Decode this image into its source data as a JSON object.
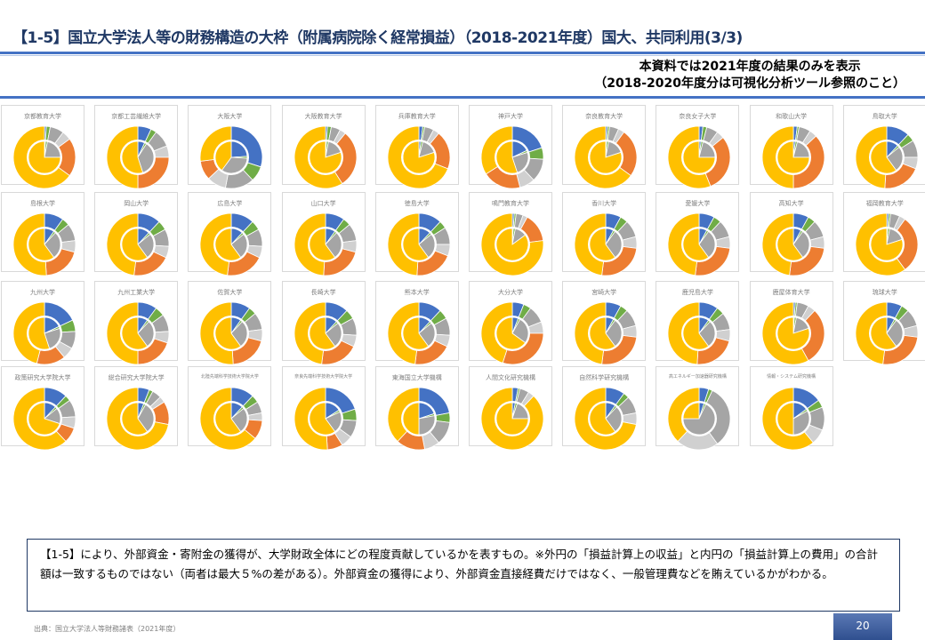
{
  "header": {
    "title": "【1-5】国立大学法人等の財務構造の大枠（附属病院除く経常損益）（2018-2021年度）国大、共同利用(3/3)",
    "note_line1": "本資料では2021年度の結果のみを表示",
    "note_line2": "（2018-2020年度分は可視化分析ツール参照のこと）"
  },
  "colors": {
    "blue": "#4472c4",
    "green": "#70ad47",
    "gray": "#a5a5a5",
    "lightgray": "#d0d0d0",
    "orange": "#ed7d31",
    "yellow": "#ffc000"
  },
  "charts": [
    {
      "name": "京都教育大学",
      "outer": [
        0.01,
        0.02,
        0.12,
        0.2
      ],
      "inner": 0.25
    },
    {
      "name": "京都工芸繊維大学",
      "outer": [
        0.07,
        0.03,
        0.15,
        0.25
      ],
      "inner": 0.45
    },
    {
      "name": "大阪大学",
      "outer": [
        0.3,
        0.08,
        0.25,
        0.1
      ],
      "inner": 0.6
    },
    {
      "name": "大阪教育大学",
      "outer": [
        0.01,
        0.02,
        0.08,
        0.3
      ],
      "inner": 0.2
    },
    {
      "name": "兵庫教育大学",
      "outer": [
        0.02,
        0.01,
        0.08,
        0.2
      ],
      "inner": 0.2
    },
    {
      "name": "神戸大学",
      "outer": [
        0.2,
        0.06,
        0.2,
        0.2
      ],
      "inner": 0.45
    },
    {
      "name": "奈良教育大学",
      "outer": [
        0.01,
        0.01,
        0.08,
        0.25
      ],
      "inner": 0.2
    },
    {
      "name": "奈良女子大学",
      "outer": [
        0.02,
        0.02,
        0.1,
        0.3
      ],
      "inner": 0.25
    },
    {
      "name": "和歌山大学",
      "outer": [
        0.02,
        0.01,
        0.1,
        0.37
      ],
      "inner": 0.25
    },
    {
      "name": "鳥取大学",
      "outer": [
        0.12,
        0.04,
        0.15,
        0.2
      ],
      "inner": 0.4
    },
    {
      "name": "島根大学",
      "outer": [
        0.1,
        0.04,
        0.15,
        0.2
      ],
      "inner": 0.4
    },
    {
      "name": "岡山大学",
      "outer": [
        0.12,
        0.05,
        0.15,
        0.2
      ],
      "inner": 0.4
    },
    {
      "name": "広島大学",
      "outer": [
        0.12,
        0.05,
        0.15,
        0.2
      ],
      "inner": 0.4
    },
    {
      "name": "山口大学",
      "outer": [
        0.1,
        0.04,
        0.15,
        0.22
      ],
      "inner": 0.4
    },
    {
      "name": "徳島大学",
      "outer": [
        0.12,
        0.04,
        0.15,
        0.2
      ],
      "inner": 0.4
    },
    {
      "name": "鳴門教育大学",
      "outer": [
        0.01,
        0.01,
        0.06,
        0.15
      ],
      "inner": 0.15
    },
    {
      "name": "香川大学",
      "outer": [
        0.08,
        0.04,
        0.15,
        0.25
      ],
      "inner": 0.4
    },
    {
      "name": "愛媛大学",
      "outer": [
        0.08,
        0.04,
        0.15,
        0.25
      ],
      "inner": 0.4
    },
    {
      "name": "高知大学",
      "outer": [
        0.08,
        0.04,
        0.15,
        0.25
      ],
      "inner": 0.4
    },
    {
      "name": "福岡教育大学",
      "outer": [
        0.01,
        0.01,
        0.08,
        0.3
      ],
      "inner": 0.2
    },
    {
      "name": "九州大学",
      "outer": [
        0.18,
        0.06,
        0.15,
        0.15
      ],
      "inner": 0.45
    },
    {
      "name": "九州工業大学",
      "outer": [
        0.1,
        0.05,
        0.15,
        0.2
      ],
      "inner": 0.4
    },
    {
      "name": "佐賀大学",
      "outer": [
        0.1,
        0.04,
        0.15,
        0.2
      ],
      "inner": 0.4
    },
    {
      "name": "長崎大学",
      "outer": [
        0.12,
        0.05,
        0.15,
        0.2
      ],
      "inner": 0.4
    },
    {
      "name": "熊本大学",
      "outer": [
        0.12,
        0.05,
        0.15,
        0.2
      ],
      "inner": 0.4
    },
    {
      "name": "大分大学",
      "outer": [
        0.06,
        0.04,
        0.15,
        0.3
      ],
      "inner": 0.35
    },
    {
      "name": "宮崎大学",
      "outer": [
        0.08,
        0.04,
        0.15,
        0.25
      ],
      "inner": 0.4
    },
    {
      "name": "鹿児島大学",
      "outer": [
        0.1,
        0.04,
        0.15,
        0.22
      ],
      "inner": 0.4
    },
    {
      "name": "鹿屋体育大学",
      "outer": [
        0.01,
        0.01,
        0.1,
        0.3
      ],
      "inner": 0.2
    },
    {
      "name": "琉球大学",
      "outer": [
        0.08,
        0.04,
        0.15,
        0.25
      ],
      "inner": 0.4
    },
    {
      "name": "政策研究大学院大学",
      "outer": [
        0.12,
        0.03,
        0.15,
        0.08
      ],
      "inner": 0.3
    },
    {
      "name": "総合研究大学院大学",
      "outer": [
        0.06,
        0.02,
        0.08,
        0.12
      ],
      "inner": 0.4
    },
    {
      "name": "北陸先端科学技術大学院大学",
      "outer": [
        0.12,
        0.04,
        0.1,
        0.1
      ],
      "inner": 0.4
    },
    {
      "name": "奈良先端科学技術大学院大学",
      "outer": [
        0.2,
        0.06,
        0.15,
        0.08
      ],
      "inner": 0.4
    },
    {
      "name": "東海国立大学機構",
      "outer": [
        0.22,
        0.05,
        0.2,
        0.15
      ],
      "inner": 0.5
    },
    {
      "name": "人間文化研究機構",
      "outer": [
        0.03,
        0.01,
        0.08,
        0.0
      ],
      "inner": 0.25
    },
    {
      "name": "自然科学研究機構",
      "outer": [
        0.1,
        0.03,
        0.15,
        0.0
      ],
      "inner": 0.4
    },
    {
      "name": "高エネルギー加速器研究機構",
      "outer": [
        0.05,
        0.02,
        0.55,
        0.0
      ],
      "inner": 0.75
    },
    {
      "name": "情報・システム研究機構",
      "outer": [
        0.15,
        0.04,
        0.2,
        0.0
      ],
      "inner": 0.5
    }
  ],
  "description": "【1-5】により、外部資金・寄附金の獲得が、大学財政全体にどの程度貢献しているかを表すもの。※外円の「損益計算上の収益」と内円の「損益計算上の費用」の合計額は一致するものではない（両者は最大５%の差がある）。外部資金の獲得により、外部資金直接経費だけではなく、一般管理費などを賄えているかがわかる。",
  "source": "出典：国立大学法人等財務諸表（2021年度）",
  "page_number": "20"
}
